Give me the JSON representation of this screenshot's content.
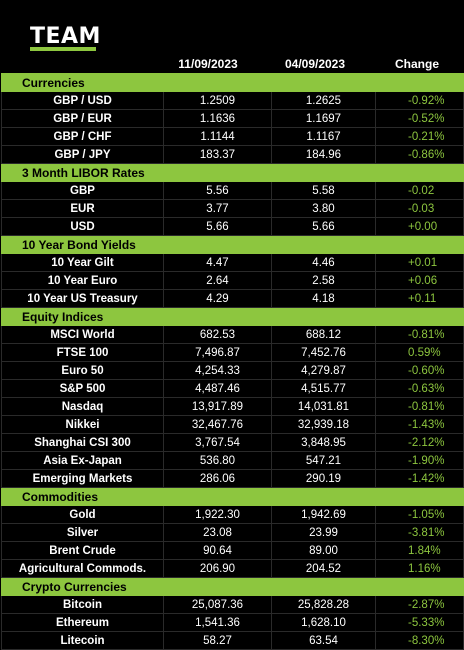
{
  "logo": "TEAM",
  "header": {
    "date1": "11/09/2023",
    "date2": "04/09/2023",
    "change": "Change"
  },
  "sections": [
    {
      "title": "Currencies",
      "rows": [
        {
          "name": "GBP / USD",
          "v1": "1.2509",
          "v2": "1.2625",
          "chg": "-0.92%"
        },
        {
          "name": "GBP / EUR",
          "v1": "1.1636",
          "v2": "1.1697",
          "chg": "-0.52%"
        },
        {
          "name": "GBP / CHF",
          "v1": "1.1144",
          "v2": "1.1167",
          "chg": "-0.21%"
        },
        {
          "name": "GBP / JPY",
          "v1": "183.37",
          "v2": "184.96",
          "chg": "-0.86%"
        }
      ]
    },
    {
      "title": "3 Month LIBOR Rates",
      "rows": [
        {
          "name": "GBP",
          "v1": "5.56",
          "v2": "5.58",
          "chg": "-0.02"
        },
        {
          "name": "EUR",
          "v1": "3.77",
          "v2": "3.80",
          "chg": "-0.03"
        },
        {
          "name": "USD",
          "v1": "5.66",
          "v2": "5.66",
          "chg": "+0.00"
        }
      ]
    },
    {
      "title": "10 Year Bond Yields",
      "rows": [
        {
          "name": "10 Year Gilt",
          "v1": "4.47",
          "v2": "4.46",
          "chg": "+0.01"
        },
        {
          "name": "10 Year Euro",
          "v1": "2.64",
          "v2": "2.58",
          "chg": "+0.06"
        },
        {
          "name": "10 Year US Treasury",
          "v1": "4.29",
          "v2": "4.18",
          "chg": "+0.11"
        }
      ]
    },
    {
      "title": "Equity Indices",
      "rows": [
        {
          "name": "MSCI World",
          "v1": "682.53",
          "v2": "688.12",
          "chg": "-0.81%"
        },
        {
          "name": "FTSE 100",
          "v1": "7,496.87",
          "v2": "7,452.76",
          "chg": "0.59%"
        },
        {
          "name": "Euro 50",
          "v1": "4,254.33",
          "v2": "4,279.87",
          "chg": "-0.60%"
        },
        {
          "name": "S&P 500",
          "v1": "4,487.46",
          "v2": "4,515.77",
          "chg": "-0.63%"
        },
        {
          "name": "Nasdaq",
          "v1": "13,917.89",
          "v2": "14,031.81",
          "chg": "-0.81%"
        },
        {
          "name": "Nikkei",
          "v1": "32,467.76",
          "v2": "32,939.18",
          "chg": "-1.43%"
        },
        {
          "name": "Shanghai CSI 300",
          "v1": "3,767.54",
          "v2": "3,848.95",
          "chg": "-2.12%"
        },
        {
          "name": "Asia Ex-Japan",
          "v1": "536.80",
          "v2": "547.21",
          "chg": "-1.90%"
        },
        {
          "name": "Emerging Markets",
          "v1": "286.06",
          "v2": "290.19",
          "chg": "-1.42%"
        }
      ]
    },
    {
      "title": "Commodities",
      "rows": [
        {
          "name": "Gold",
          "v1": "1,922.30",
          "v2": "1,942.69",
          "chg": "-1.05%"
        },
        {
          "name": "Silver",
          "v1": "23.08",
          "v2": "23.99",
          "chg": "-3.81%"
        },
        {
          "name": "Brent Crude",
          "v1": "90.64",
          "v2": "89.00",
          "chg": "1.84%"
        },
        {
          "name": "Agricultural Commods.",
          "v1": "206.90",
          "v2": "204.52",
          "chg": "1.16%"
        }
      ]
    },
    {
      "title": "Crypto Currencies",
      "rows": [
        {
          "name": "Bitcoin",
          "v1": "25,087.36",
          "v2": "25,828.28",
          "chg": "-2.87%"
        },
        {
          "name": "Ethereum",
          "v1": "1,541.36",
          "v2": "1,628.10",
          "chg": "-5.33%"
        },
        {
          "name": "Litecoin",
          "v1": "58.27",
          "v2": "63.54",
          "chg": "-8.30%"
        }
      ]
    }
  ]
}
